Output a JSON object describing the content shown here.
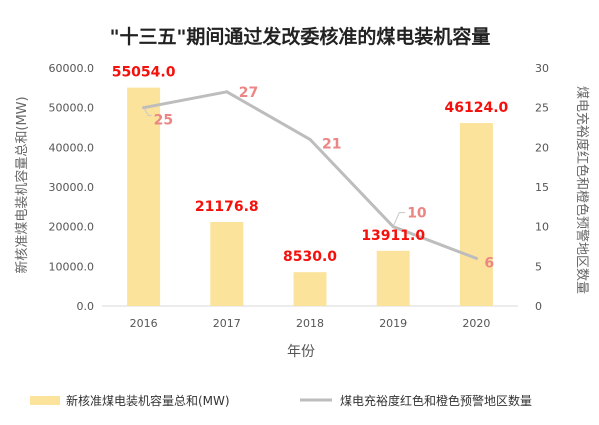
{
  "chart_data": {
    "title": "\"十三五\"期间通过发改委核准的煤电装机容量",
    "xlabel": "年份",
    "categories": [
      "2016",
      "2017",
      "2018",
      "2019",
      "2020"
    ],
    "series": [
      {
        "name": "新核准煤电装机容量总和(MW)",
        "type": "bar",
        "axis": "left",
        "values": [
          55054.0,
          21176.8,
          8530.0,
          13911.0,
          46124.0
        ],
        "data_labels": [
          "55054.0",
          "21176.8",
          "8530.0",
          "13911.0",
          "46124.0"
        ],
        "color": "#fce39c",
        "label_color": "#f5100c"
      },
      {
        "name": "煤电充裕度红色和橙色预警地区数量",
        "type": "line",
        "axis": "right",
        "values": [
          25,
          27,
          21,
          10,
          6
        ],
        "data_labels": [
          "25",
          "27",
          "21",
          "10",
          "6"
        ],
        "color": "#bdbdbd",
        "label_color": "#ec8684"
      }
    ],
    "y_left": {
      "label": "新核准煤电装机容量总和(MW)",
      "lim": [
        0,
        60000
      ],
      "ticks": [
        "0.0",
        "10000.0",
        "20000.0",
        "30000.0",
        "40000.0",
        "50000.0",
        "60000.0"
      ]
    },
    "y_right": {
      "label": "煤电充裕度红色和橙色预警地区数量",
      "lim": [
        0,
        30
      ],
      "ticks": [
        "0",
        "5",
        "10",
        "15",
        "20",
        "25",
        "30"
      ]
    },
    "grid": false,
    "legend_position": "bottom"
  }
}
